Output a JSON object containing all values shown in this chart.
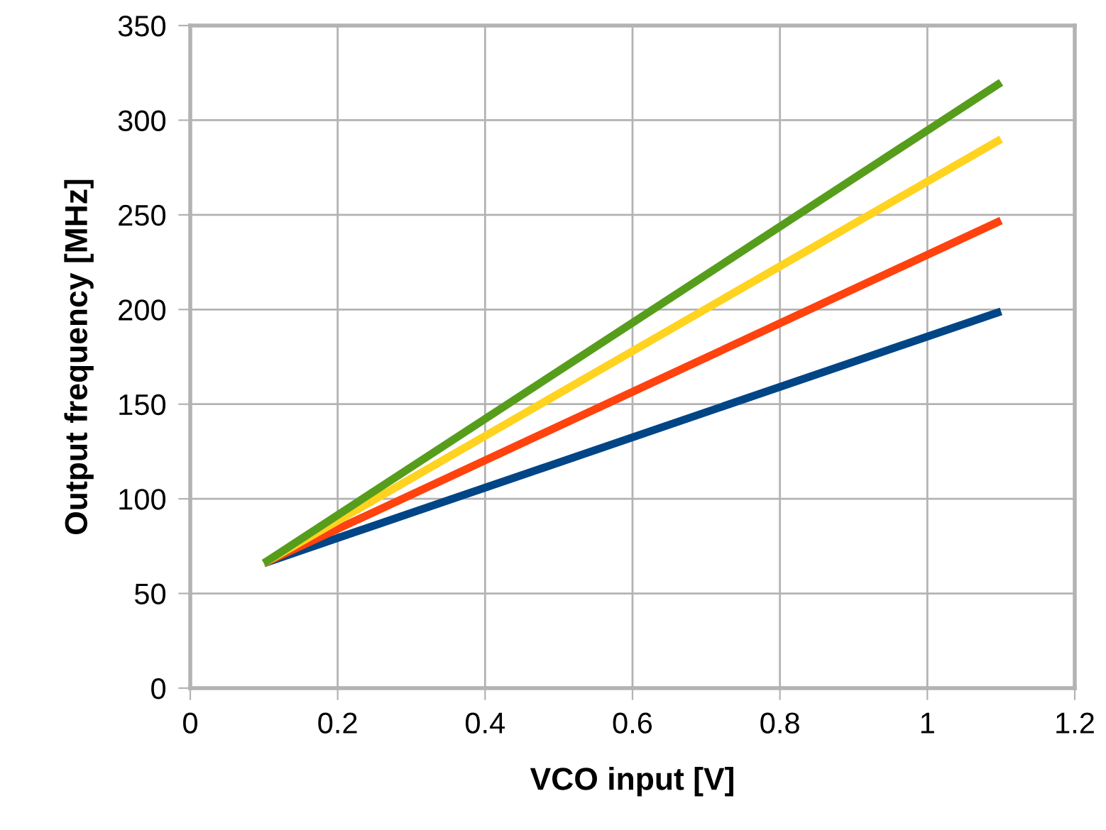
{
  "chart_data": {
    "type": "line",
    "xlabel": "VCO input [V]",
    "ylabel": "Output frequency [MHz]",
    "x": [
      0.1,
      1.1
    ],
    "series": [
      {
        "color": "#004586",
        "values": [
          66,
          199
        ]
      },
      {
        "color": "#ff420e",
        "values": [
          66,
          247
        ]
      },
      {
        "color": "#ffd320",
        "values": [
          66,
          290
        ]
      },
      {
        "color": "#579d1c",
        "values": [
          66,
          320
        ]
      }
    ],
    "xlim": [
      0,
      1.2
    ],
    "xticks": [
      0,
      0.2,
      0.4,
      0.6,
      0.8,
      1,
      1.2
    ],
    "ylim": [
      0,
      350
    ],
    "yticks": [
      0,
      50,
      100,
      150,
      200,
      250,
      300,
      350
    ],
    "grid": true,
    "marker": "none",
    "line_style": "solid",
    "legend": false
  }
}
